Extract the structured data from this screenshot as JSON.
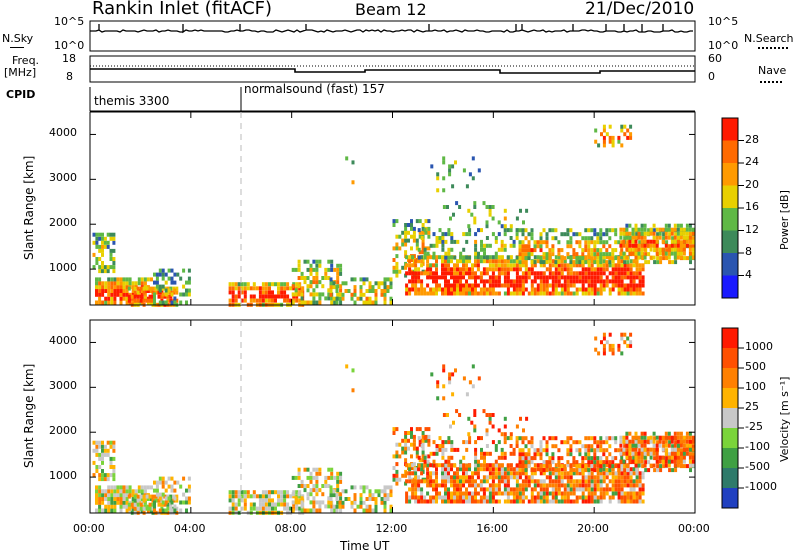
{
  "header": {
    "station": "Rankin Inlet (fitACF)",
    "beam": "Beam 12",
    "date": "21/Dec/2010"
  },
  "top_panels": {
    "nsky_label": "N.Sky",
    "nsky_ticks": [
      "10^5",
      "10^0"
    ],
    "nsearch_label": "N.Search",
    "nsearch_ticks": [
      "10^5",
      "10^0"
    ],
    "freq_label_line1": "Freq.",
    "freq_label_line2": "[MHz]",
    "freq_ticks": [
      "18",
      "8"
    ],
    "nave_label": "Nave",
    "nave_ticks": [
      "60",
      "0"
    ],
    "cpid_label": "CPID",
    "cpid_modes": [
      "themis 3300",
      "normalsound (fast) 157"
    ]
  },
  "colors": {
    "power_scale": [
      "#1a1aff",
      "#2a55b0",
      "#3d8a5a",
      "#5fb845",
      "#e8d000",
      "#ff9a00",
      "#ff6a00",
      "#ff1a00"
    ],
    "velocity_scale": [
      "#2040c0",
      "#2e7a6a",
      "#3fa043",
      "#7ad43a",
      "#c8c8c8",
      "#ffb300",
      "#ff8000",
      "#ff5000",
      "#ff1a00"
    ]
  },
  "chart_data": [
    {
      "type": "heatmap",
      "title": "",
      "xlabel": "Time UT",
      "ylabel": "Slant Range [km]",
      "x_ticks": [
        "00:00",
        "04:00",
        "08:00",
        "12:00",
        "16:00",
        "20:00",
        "00:00"
      ],
      "y_ticks": [
        "1000",
        "2000",
        "3000",
        "4000"
      ],
      "ylim": [
        200,
        4500
      ],
      "colorbar_label": "Power [dB]",
      "colorbar_ticks": [
        "28",
        "24",
        "20",
        "16",
        "12",
        "8",
        "4"
      ]
    },
    {
      "type": "heatmap",
      "title": "",
      "xlabel": "Time UT",
      "ylabel": "Slant Range [km]",
      "x_ticks": [
        "00:00",
        "04:00",
        "08:00",
        "12:00",
        "16:00",
        "20:00",
        "00:00"
      ],
      "y_ticks": [
        "1000",
        "2000",
        "3000",
        "4000"
      ],
      "ylim": [
        200,
        4500
      ],
      "colorbar_label": "Velocity [m s⁻¹]",
      "colorbar_ticks": [
        "1000",
        "500",
        "100",
        "25",
        "-25",
        "-100",
        "-500",
        "-1000"
      ]
    }
  ]
}
